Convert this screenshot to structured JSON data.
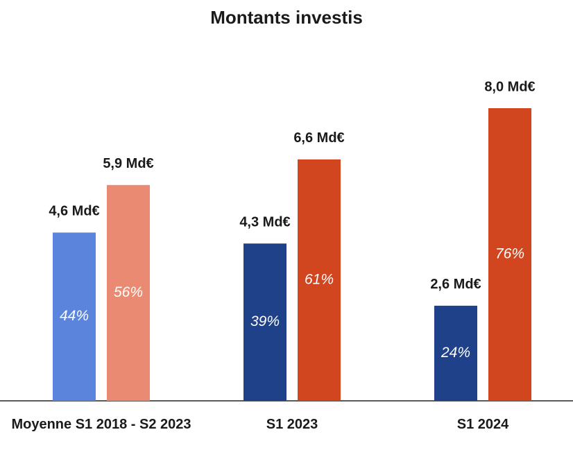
{
  "chart_data": {
    "type": "bar",
    "title": "Montants investis",
    "categories": [
      "Moyenne S1 2018 - S2 2023",
      "S1 2023",
      "S1 2024"
    ],
    "series": [
      {
        "colors": [
          "#5b84dd",
          "#1f418a",
          "#1f418a"
        ],
        "values": [
          4.6,
          4.3,
          2.6
        ],
        "value_labels": [
          "4,6 Md€",
          "4,3 Md€",
          "2,6 Md€"
        ],
        "shares": [
          44,
          39,
          24
        ],
        "share_labels": [
          "44%",
          "39%",
          "24%"
        ]
      },
      {
        "colors": [
          "#eb8a72",
          "#d1451f",
          "#d1451f"
        ],
        "values": [
          5.9,
          6.6,
          8.0
        ],
        "value_labels": [
          "5,9 Md€",
          "6,6 Md€",
          "8,0 Md€"
        ],
        "shares": [
          56,
          61,
          76
        ],
        "share_labels": [
          "56%",
          "61%",
          "76%"
        ]
      }
    ],
    "ylim": [
      0,
      10
    ]
  }
}
